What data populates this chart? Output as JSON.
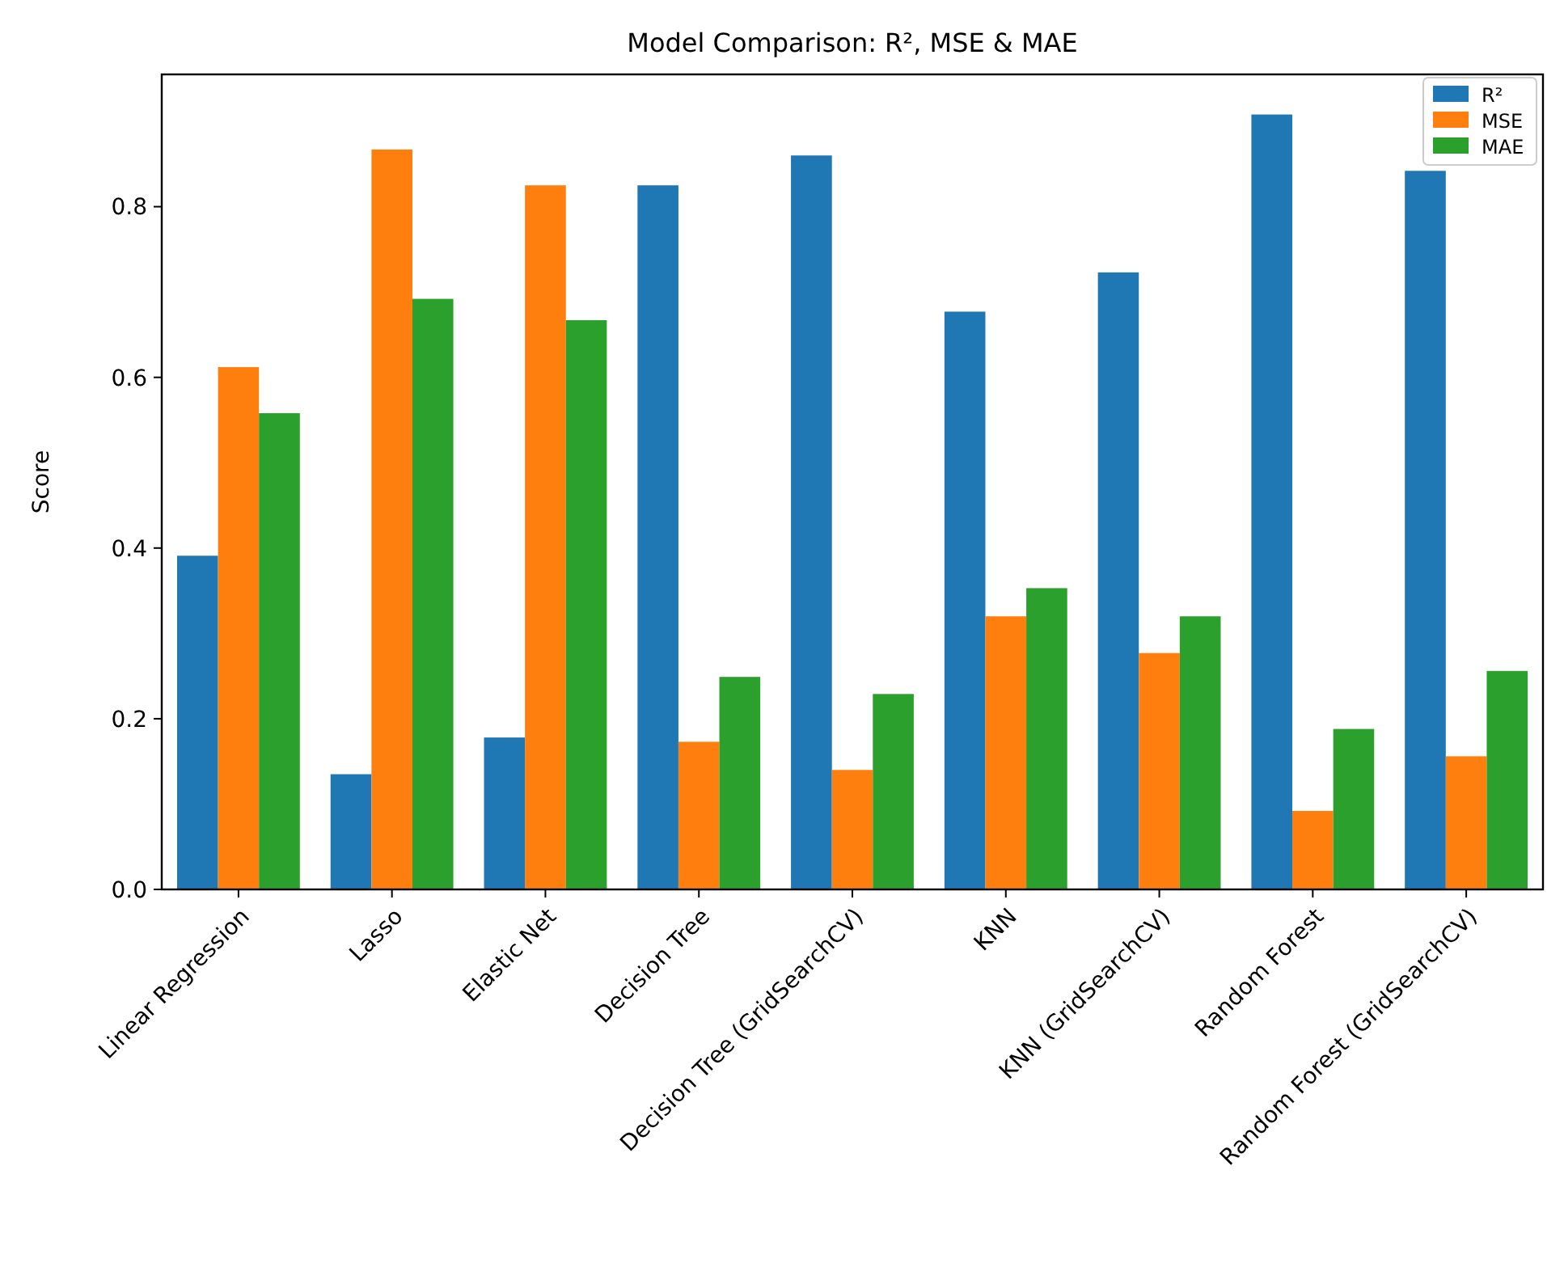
{
  "chart_data": {
    "type": "bar",
    "title": "Model Comparison: R², MSE & MAE",
    "ylabel": "Score",
    "categories": [
      "Linear Regression",
      "Lasso",
      "Elastic Net",
      "Decision Tree",
      "Decision Tree (GridSearchCV)",
      "KNN",
      "KNN (GridSearchCV)",
      "Random Forest",
      "Random Forest (GridSearchCV)"
    ],
    "series": [
      {
        "name": "R²",
        "color": "#1f77b4",
        "values": [
          0.391,
          0.135,
          0.178,
          0.825,
          0.86,
          0.677,
          0.723,
          0.908,
          0.842
        ]
      },
      {
        "name": "MSE",
        "color": "#ff7f0e",
        "values": [
          0.612,
          0.867,
          0.825,
          0.173,
          0.14,
          0.32,
          0.277,
          0.092,
          0.156
        ]
      },
      {
        "name": "MAE",
        "color": "#2ca02c",
        "values": [
          0.558,
          0.692,
          0.667,
          0.249,
          0.229,
          0.353,
          0.32,
          0.188,
          0.256
        ]
      }
    ],
    "ylim": [
      0,
      0.955
    ],
    "yticks": [
      {
        "value": 0,
        "label": "0.0"
      },
      {
        "value": 0.2,
        "label": "0.2"
      },
      {
        "value": 0.4,
        "label": "0.4"
      },
      {
        "value": 0.6,
        "label": "0.6"
      },
      {
        "value": 0.8,
        "label": "0.8"
      }
    ],
    "legend": "top right"
  }
}
